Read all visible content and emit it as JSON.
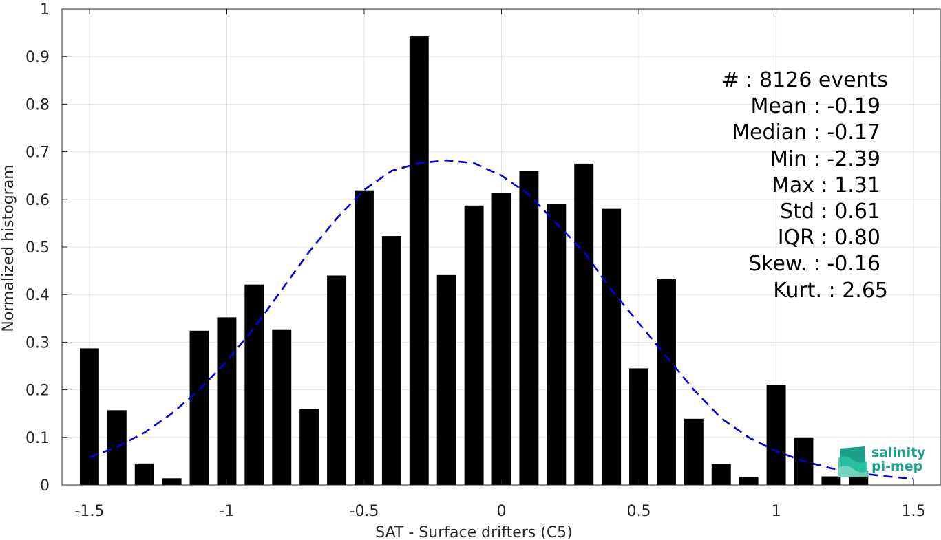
{
  "chart_data": {
    "type": "bar",
    "xlabel": "SAT - Surface drifters (C5)",
    "ylabel": "Normalized histogram",
    "xlim": [
      -1.6,
      1.6
    ],
    "ylim": [
      0,
      1
    ],
    "grid": true,
    "xticks": [
      "-1.5",
      "-1",
      "-0.5",
      "0",
      "0.5",
      "1",
      "1.5"
    ],
    "yticks": [
      "0",
      "0.1",
      "0.2",
      "0.3",
      "0.4",
      "0.5",
      "0.6",
      "0.7",
      "0.8",
      "0.9",
      "1"
    ],
    "bar_color": "#000000",
    "curve_color": "#0000e0",
    "x": [
      -1.5,
      -1.4,
      -1.3,
      -1.2,
      -1.1,
      -1.0,
      -0.9,
      -0.8,
      -0.7,
      -0.6,
      -0.5,
      -0.4,
      -0.3,
      -0.2,
      -0.1,
      0.0,
      0.1,
      0.2,
      0.3,
      0.4,
      0.5,
      0.6,
      0.7,
      0.8,
      0.9,
      1.0,
      1.1,
      1.2,
      1.3
    ],
    "values": [
      0.287,
      0.157,
      0.045,
      0.014,
      0.324,
      0.352,
      0.421,
      0.327,
      0.159,
      0.44,
      0.619,
      0.523,
      0.942,
      0.441,
      0.587,
      0.614,
      0.66,
      0.591,
      0.675,
      0.58,
      0.245,
      0.432,
      0.139,
      0.044,
      0.017,
      0.211,
      0.1,
      0.018,
      0.03
    ],
    "fit_curve": {
      "style": "dashed",
      "x": [
        -1.5,
        -1.4,
        -1.3,
        -1.2,
        -1.1,
        -1.0,
        -0.9,
        -0.8,
        -0.7,
        -0.6,
        -0.5,
        -0.4,
        -0.3,
        -0.2,
        -0.1,
        0.0,
        0.1,
        0.2,
        0.3,
        0.4,
        0.5,
        0.6,
        0.7,
        0.8,
        0.9,
        1.0,
        1.1,
        1.2,
        1.3,
        1.4,
        1.5
      ],
      "y": [
        0.058,
        0.08,
        0.11,
        0.15,
        0.2,
        0.26,
        0.33,
        0.41,
        0.49,
        0.56,
        0.62,
        0.66,
        0.676,
        0.682,
        0.676,
        0.65,
        0.61,
        0.55,
        0.49,
        0.41,
        0.34,
        0.27,
        0.2,
        0.14,
        0.1,
        0.071,
        0.05,
        0.035,
        0.025,
        0.018,
        0.013
      ]
    }
  },
  "stats": [
    "#  : 8126 events",
    "Mean : -0.19",
    "Median : -0.17",
    "Min : -2.39",
    "Max : 1.31",
    "Std : 0.61",
    "IQR : 0.80",
    "Skew. : -0.16",
    "Kurt. : 2.65"
  ],
  "logo": {
    "line1": "salinity",
    "line2": "pi-mep",
    "colors": [
      "#1aa08a",
      "#2cc4a4",
      "#7fd9c4"
    ]
  }
}
